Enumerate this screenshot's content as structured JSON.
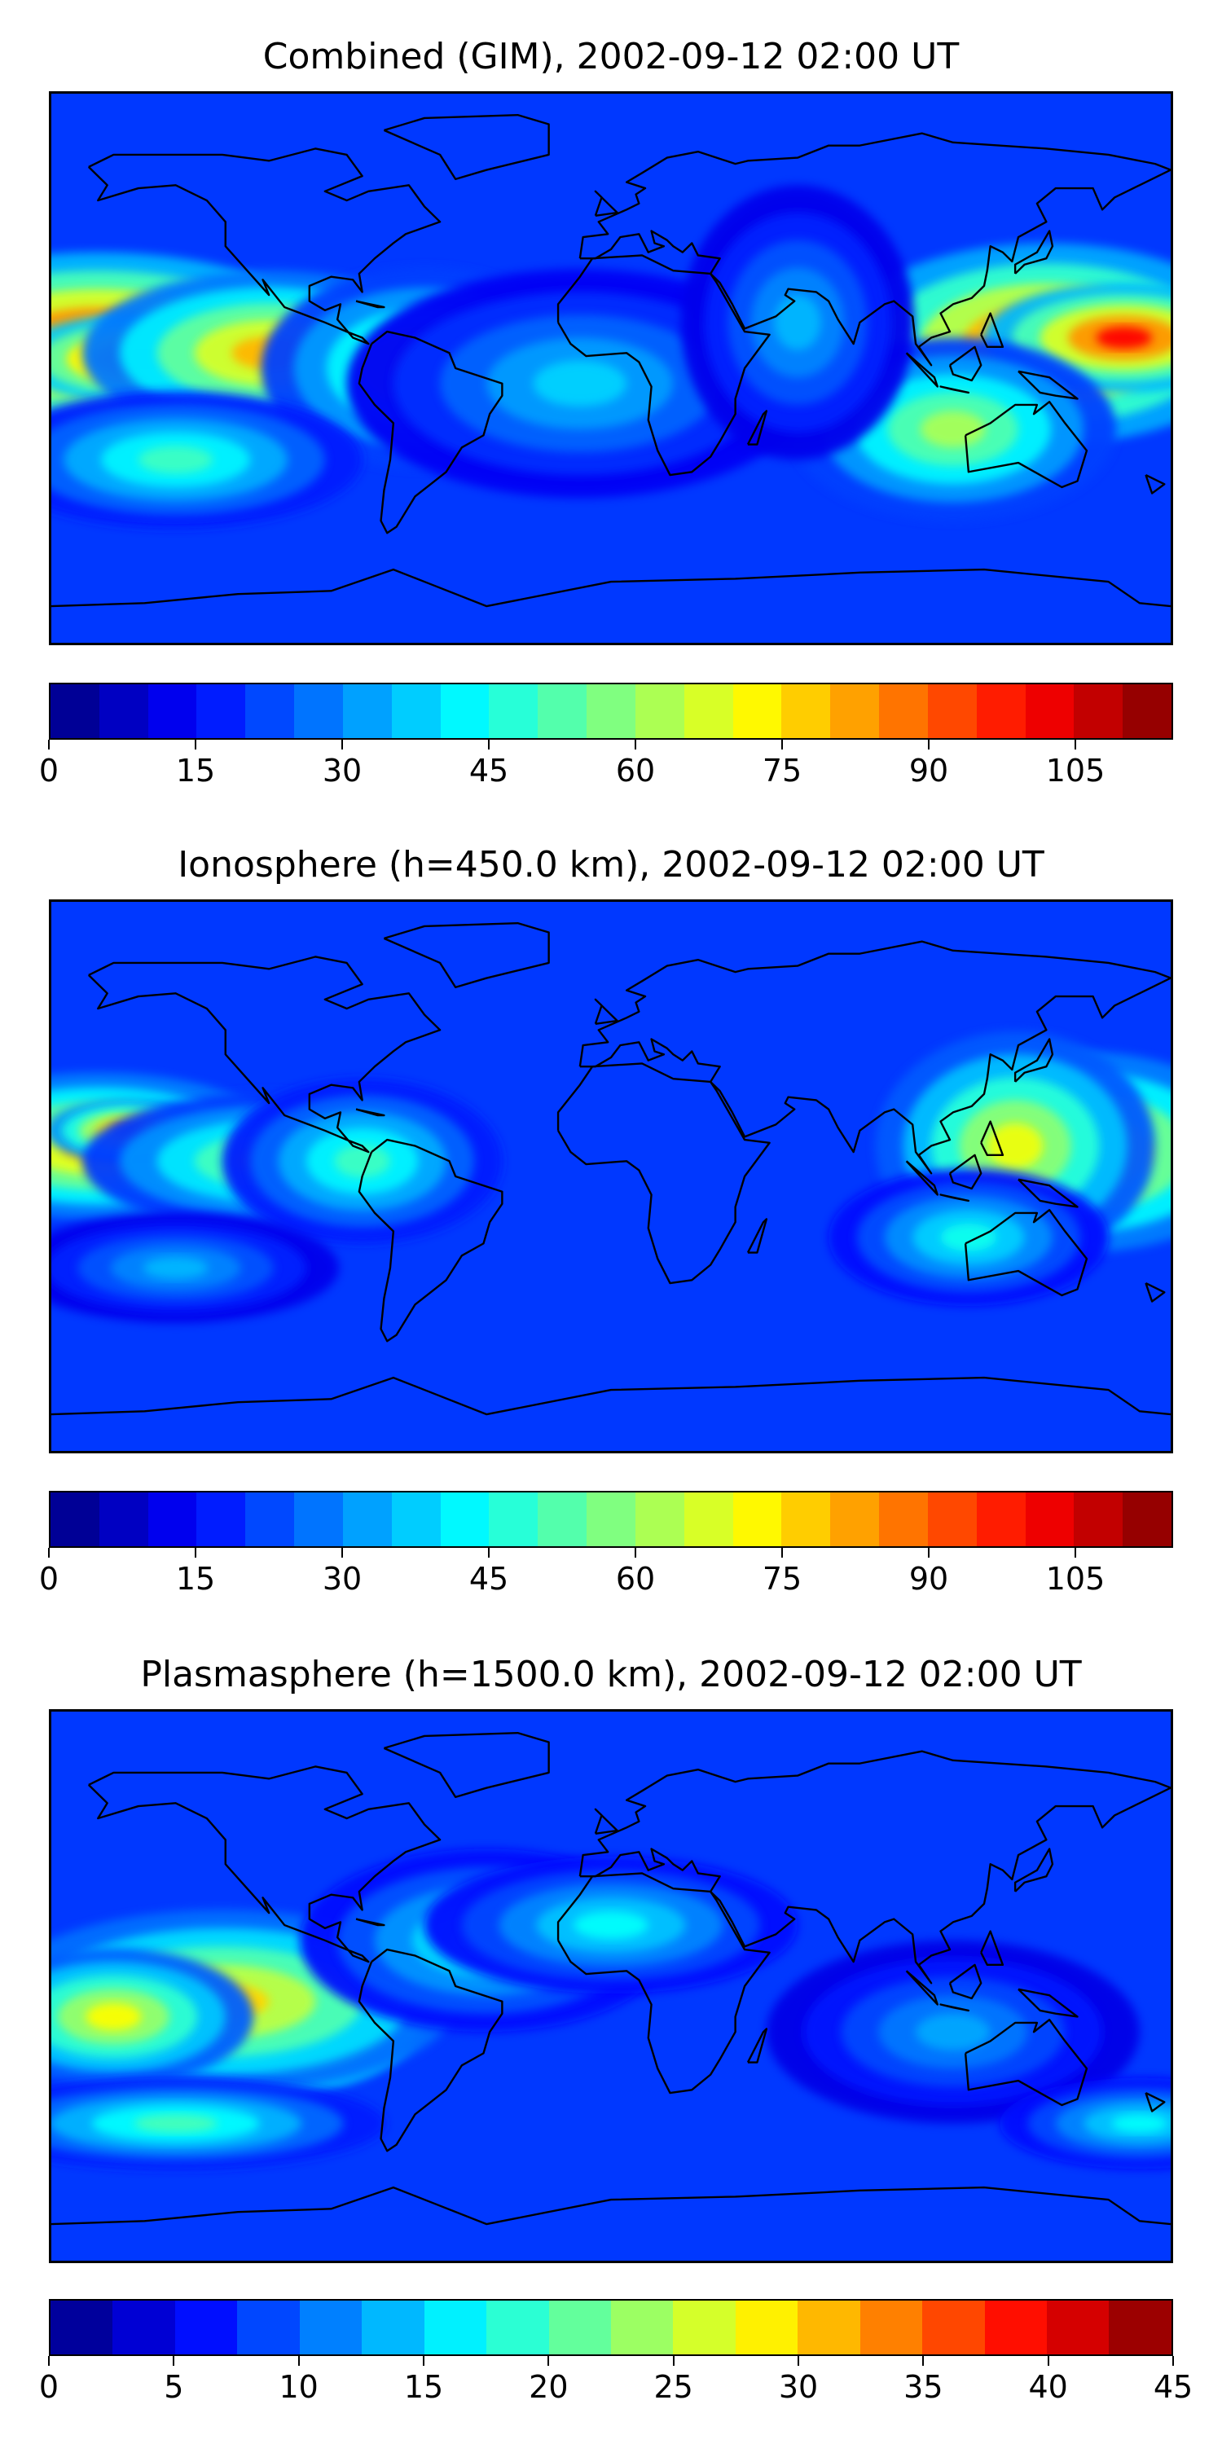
{
  "panels": [
    {
      "title": "Combined (GIM), 2002-09-12 02:00 UT",
      "colorbar_ticks": [
        "0",
        "15",
        "30",
        "45",
        "60",
        "75",
        "90",
        "105"
      ],
      "tick_values": [
        0,
        15,
        30,
        45,
        60,
        75,
        90,
        105
      ],
      "vmin": 0,
      "vmax": 115,
      "levels": 23,
      "blobs": [
        {
          "lon": -165,
          "lat": 8,
          "rx": 50,
          "ry": 20,
          "v": 100
        },
        {
          "lon": -150,
          "lat": 3,
          "rx": 28,
          "ry": 10,
          "v": 108
        },
        {
          "lon": -110,
          "lat": 5,
          "rx": 40,
          "ry": 18,
          "v": 80
        },
        {
          "lon": -60,
          "lat": 0,
          "rx": 35,
          "ry": 22,
          "v": 62
        },
        {
          "lon": 140,
          "lat": 8,
          "rx": 45,
          "ry": 22,
          "v": 95
        },
        {
          "lon": 165,
          "lat": 10,
          "rx": 30,
          "ry": 12,
          "v": 100
        },
        {
          "lon": 110,
          "lat": -20,
          "rx": 35,
          "ry": 20,
          "v": 62
        },
        {
          "lon": -140,
          "lat": -30,
          "rx": 40,
          "ry": 15,
          "v": 50
        },
        {
          "lon": -10,
          "lat": -5,
          "rx": 50,
          "ry": 25,
          "v": 38
        },
        {
          "lon": 60,
          "lat": 15,
          "rx": 25,
          "ry": 30,
          "v": 35
        }
      ]
    },
    {
      "title": "Ionosphere  (h=450.0 km), 2002-09-12 02:00 UT",
      "colorbar_ticks": [
        "0",
        "15",
        "30",
        "45",
        "60",
        "75",
        "90",
        "105"
      ],
      "tick_values": [
        0,
        15,
        30,
        45,
        60,
        75,
        90,
        105
      ],
      "vmin": 0,
      "vmax": 115,
      "levels": 23,
      "blobs": [
        {
          "lon": -165,
          "lat": 10,
          "rx": 40,
          "ry": 16,
          "v": 82
        },
        {
          "lon": -155,
          "lat": 15,
          "rx": 18,
          "ry": 7,
          "v": 90
        },
        {
          "lon": -110,
          "lat": 5,
          "rx": 40,
          "ry": 15,
          "v": 60
        },
        {
          "lon": -80,
          "lat": 5,
          "rx": 30,
          "ry": 18,
          "v": 50
        },
        {
          "lon": 150,
          "lat": 8,
          "rx": 40,
          "ry": 22,
          "v": 82
        },
        {
          "lon": 130,
          "lat": 10,
          "rx": 30,
          "ry": 25,
          "v": 70
        },
        {
          "lon": 115,
          "lat": -20,
          "rx": 30,
          "ry": 15,
          "v": 45
        },
        {
          "lon": -140,
          "lat": -30,
          "rx": 35,
          "ry": 12,
          "v": 35
        }
      ]
    },
    {
      "title": "Plasmasphere (h=1500.0 km), 2002-09-12 02:00 UT",
      "colorbar_ticks": [
        "0",
        "5",
        "10",
        "15",
        "20",
        "25",
        "30",
        "35",
        "40",
        "45"
      ],
      "tick_values": [
        0,
        5,
        10,
        15,
        20,
        25,
        30,
        35,
        40,
        45
      ],
      "vmin": 0,
      "vmax": 45,
      "levels": 18,
      "blobs": [
        {
          "lon": -105,
          "lat": -8,
          "rx": 30,
          "ry": 18,
          "v": 42
        },
        {
          "lon": -125,
          "lat": -5,
          "rx": 50,
          "ry": 20,
          "v": 30
        },
        {
          "lon": -160,
          "lat": -10,
          "rx": 30,
          "ry": 15,
          "v": 28
        },
        {
          "lon": -40,
          "lat": 15,
          "rx": 40,
          "ry": 20,
          "v": 18
        },
        {
          "lon": 0,
          "lat": 20,
          "rx": 40,
          "ry": 15,
          "v": 17
        },
        {
          "lon": -140,
          "lat": -45,
          "rx": 45,
          "ry": 10,
          "v": 20
        },
        {
          "lon": 110,
          "lat": -15,
          "rx": 40,
          "ry": 20,
          "v": 13
        },
        {
          "lon": 170,
          "lat": -45,
          "rx": 30,
          "ry": 10,
          "v": 17
        }
      ]
    }
  ]
}
